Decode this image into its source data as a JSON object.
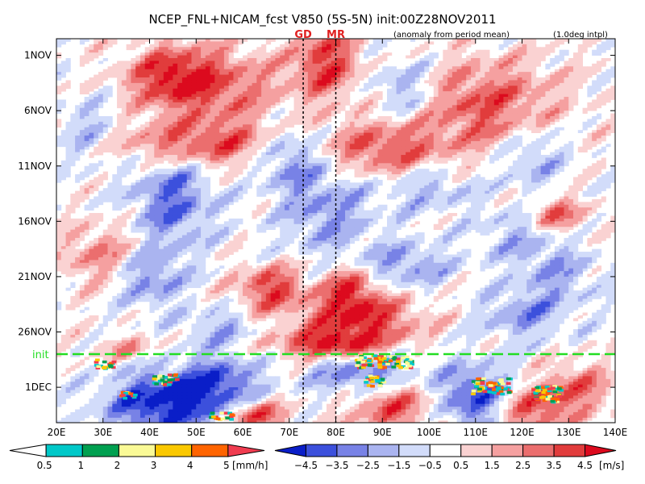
{
  "chart_data": {
    "type": "heatmap",
    "title": "NCEP_FNL+NICAM_fcst V850 (5S-5N) init:00Z28NOV2011",
    "subtitle": "(anomaly from period mean)",
    "note": "(1.0deg intpl)",
    "x_axis": {
      "range": [
        20,
        140
      ],
      "ticks": [
        20,
        30,
        40,
        50,
        60,
        70,
        80,
        90,
        100,
        110,
        120,
        130,
        140
      ],
      "tick_labels": [
        "20E",
        "30E",
        "40E",
        "50E",
        "60E",
        "70E",
        "80E",
        "90E",
        "100E",
        "110E",
        "120E",
        "130E",
        "140E"
      ]
    },
    "y_axis": {
      "ticks": [
        "1NOV",
        "6NOV",
        "11NOV",
        "16NOV",
        "21NOV",
        "26NOV",
        "1DEC"
      ],
      "day_offsets": [
        1,
        6,
        11,
        16,
        21,
        26,
        31
      ],
      "range_days": [
        -0.5,
        34.2
      ]
    },
    "init": {
      "label": "init",
      "day": 28
    },
    "markers": [
      {
        "label": "GD",
        "lon": 73
      },
      {
        "label": "MR",
        "lon": 80
      }
    ],
    "precip_colorbar": {
      "levels": [
        "0.5",
        "1",
        "2",
        "3",
        "4",
        "5"
      ],
      "unit": "[mm/h]",
      "colors": [
        "#00c8c8",
        "#00a050",
        "#fafa96",
        "#fac800",
        "#ff6400",
        "#f03c50"
      ]
    },
    "wind_colorbar": {
      "levels": [
        "-4.5",
        "-3.5",
        "-2.5",
        "-1.5",
        "-0.5",
        "0.5",
        "1.5",
        "2.5",
        "3.5",
        "4.5"
      ],
      "unit": "[m/s]",
      "colors": [
        "#0a1ec8",
        "#3c50dc",
        "#7882e6",
        "#aab4f0",
        "#d2dcfa",
        "#ffffff",
        "#fad2d2",
        "#f5a0a0",
        "#eb6e6e",
        "#e13c3c",
        "#dc0a1e"
      ]
    },
    "anomalies": [
      {
        "lon": 45,
        "day": 3,
        "sx": 7,
        "sy": 2.0,
        "amp": 4.5
      },
      {
        "lon": 78,
        "day": 1.5,
        "sx": 5,
        "sy": 2.5,
        "amp": 4.0
      },
      {
        "lon": 58,
        "day": 4,
        "sx": 9,
        "sy": 2.5,
        "amp": 2.5
      },
      {
        "lon": 112,
        "day": 5.5,
        "sx": 11,
        "sy": 3.0,
        "amp": 3.5
      },
      {
        "lon": 95,
        "day": 4,
        "sx": 5,
        "sy": 2.0,
        "amp": -2.5
      },
      {
        "lon": 50,
        "day": 9,
        "sx": 13,
        "sy": 1.5,
        "amp": 3.8
      },
      {
        "lon": 90,
        "day": 9.5,
        "sx": 9,
        "sy": 1.8,
        "amp": 3.5
      },
      {
        "lon": 27,
        "day": 8,
        "sx": 5,
        "sy": 2.0,
        "amp": -2.0
      },
      {
        "lon": 70,
        "day": 10,
        "sx": 5,
        "sy": 2.0,
        "amp": -3.0
      },
      {
        "lon": 122,
        "day": 10,
        "sx": 5,
        "sy": 2.0,
        "amp": -2.5
      },
      {
        "lon": 45,
        "day": 14,
        "sx": 6,
        "sy": 3.0,
        "amp": -3.5
      },
      {
        "lon": 78,
        "day": 15,
        "sx": 7,
        "sy": 3.0,
        "amp": -2.5
      },
      {
        "lon": 100,
        "day": 13,
        "sx": 7,
        "sy": 1.5,
        "amp": -2.0
      },
      {
        "lon": 127,
        "day": 15.5,
        "sx": 5,
        "sy": 1.2,
        "amp": 3.5
      },
      {
        "lon": 120,
        "day": 17,
        "sx": 6,
        "sy": 2.0,
        "amp": -2.0
      },
      {
        "lon": 30,
        "day": 19,
        "sx": 7,
        "sy": 2.0,
        "amp": 2.5
      },
      {
        "lon": 40,
        "day": 21,
        "sx": 5,
        "sy": 2.0,
        "amp": -3.0
      },
      {
        "lon": 95,
        "day": 20,
        "sx": 7,
        "sy": 1.5,
        "amp": -2.5
      },
      {
        "lon": 66,
        "day": 22,
        "sx": 5,
        "sy": 1.5,
        "amp": 4.0
      },
      {
        "lon": 83,
        "day": 22,
        "sx": 4,
        "sy": 1.5,
        "amp": 3.5
      },
      {
        "lon": 128,
        "day": 21,
        "sx": 6,
        "sy": 2.0,
        "amp": -2.0
      },
      {
        "lon": 85,
        "day": 25,
        "sx": 9,
        "sy": 1.8,
        "amp": 4.5
      },
      {
        "lon": 120,
        "day": 24.5,
        "sx": 6,
        "sy": 1.5,
        "amp": -2.5
      },
      {
        "lon": 55,
        "day": 25.5,
        "sx": 5,
        "sy": 1.2,
        "amp": -2.0
      },
      {
        "lon": 78,
        "day": 27.2,
        "sx": 8,
        "sy": 0.8,
        "amp": 4.0
      },
      {
        "lon": 35,
        "day": 27.5,
        "sx": 5,
        "sy": 0.8,
        "amp": 2.0
      },
      {
        "lon": 42,
        "day": 32.5,
        "sx": 8,
        "sy": 2.0,
        "amp": -5.0
      },
      {
        "lon": 55,
        "day": 31,
        "sx": 6,
        "sy": 2.0,
        "amp": -4.0
      },
      {
        "lon": 62,
        "day": 33.5,
        "sx": 5,
        "sy": 1.0,
        "amp": 4.5
      },
      {
        "lon": 88,
        "day": 30,
        "sx": 8,
        "sy": 1.5,
        "amp": -5.0
      },
      {
        "lon": 92,
        "day": 32,
        "sx": 7,
        "sy": 2.0,
        "amp": 4.5
      },
      {
        "lon": 110,
        "day": 32,
        "sx": 6,
        "sy": 2.0,
        "amp": -4.5
      },
      {
        "lon": 122,
        "day": 33,
        "sx": 6,
        "sy": 1.5,
        "amp": 4.0
      },
      {
        "lon": 132,
        "day": 31,
        "sx": 5,
        "sy": 1.5,
        "amp": 3.0
      }
    ],
    "precip_clusters": [
      {
        "lon": 90,
        "day": 28.6,
        "w": 12,
        "h": 1.2
      },
      {
        "lon": 88,
        "day": 30.3,
        "w": 4,
        "h": 1.0
      },
      {
        "lon": 113,
        "day": 30.8,
        "w": 8,
        "h": 1.4
      },
      {
        "lon": 125,
        "day": 31.5,
        "w": 6,
        "h": 1.5
      },
      {
        "lon": 43,
        "day": 30.2,
        "w": 5,
        "h": 1.0
      },
      {
        "lon": 30,
        "day": 28.8,
        "w": 4,
        "h": 0.8
      },
      {
        "lon": 55,
        "day": 33.5,
        "w": 5,
        "h": 0.6
      },
      {
        "lon": 35,
        "day": 31.6,
        "w": 3,
        "h": 0.6
      }
    ]
  }
}
